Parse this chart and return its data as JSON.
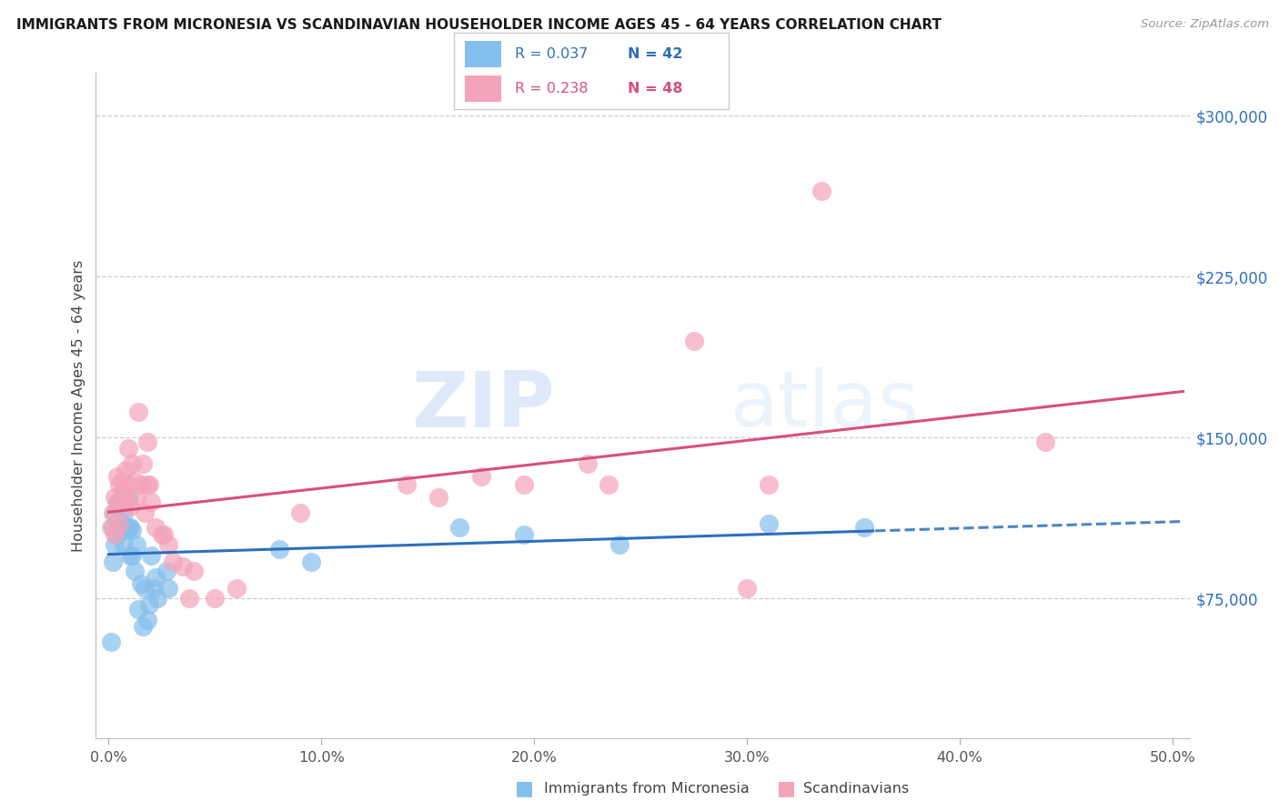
{
  "title": "IMMIGRANTS FROM MICRONESIA VS SCANDINAVIAN HOUSEHOLDER INCOME AGES 45 - 64 YEARS CORRELATION CHART",
  "source": "Source: ZipAtlas.com",
  "xlabel_ticks": [
    "0.0%",
    "10.0%",
    "20.0%",
    "30.0%",
    "40.0%",
    "50.0%"
  ],
  "xlabel_vals": [
    0.0,
    0.1,
    0.2,
    0.3,
    0.4,
    0.5
  ],
  "ylabel_ticks": [
    "$75,000",
    "$150,000",
    "$225,000",
    "$300,000"
  ],
  "ylabel_vals": [
    75000,
    150000,
    225000,
    300000
  ],
  "xlim": [
    -0.006,
    0.508
  ],
  "ylim": [
    10000,
    320000
  ],
  "blue_color": "#85bfed",
  "pink_color": "#f4a3b8",
  "blue_line_color": "#2e6fbc",
  "pink_line_color": "#d94f7a",
  "yaxis_label_color": "#2e6fbc",
  "blue_scatter_x": [
    0.001,
    0.002,
    0.002,
    0.003,
    0.003,
    0.004,
    0.004,
    0.005,
    0.005,
    0.006,
    0.006,
    0.007,
    0.007,
    0.008,
    0.008,
    0.009,
    0.009,
    0.01,
    0.01,
    0.011,
    0.011,
    0.012,
    0.013,
    0.014,
    0.015,
    0.016,
    0.017,
    0.018,
    0.019,
    0.02,
    0.021,
    0.022,
    0.023,
    0.027,
    0.028,
    0.08,
    0.095,
    0.165,
    0.195,
    0.24,
    0.31,
    0.355
  ],
  "blue_scatter_y": [
    55000,
    92000,
    108000,
    100000,
    115000,
    105000,
    118000,
    108000,
    120000,
    110000,
    122000,
    100000,
    115000,
    107000,
    120000,
    108000,
    122000,
    95000,
    108000,
    95000,
    107000,
    88000,
    100000,
    70000,
    82000,
    62000,
    80000,
    65000,
    72000,
    95000,
    80000,
    85000,
    75000,
    88000,
    80000,
    98000,
    92000,
    108000,
    105000,
    100000,
    110000,
    108000
  ],
  "pink_scatter_x": [
    0.001,
    0.002,
    0.003,
    0.003,
    0.004,
    0.004,
    0.005,
    0.005,
    0.006,
    0.007,
    0.008,
    0.008,
    0.009,
    0.009,
    0.01,
    0.011,
    0.012,
    0.013,
    0.014,
    0.015,
    0.016,
    0.017,
    0.018,
    0.018,
    0.019,
    0.02,
    0.022,
    0.025,
    0.026,
    0.028,
    0.03,
    0.035,
    0.038,
    0.04,
    0.05,
    0.06,
    0.09,
    0.14,
    0.155,
    0.175,
    0.195,
    0.225,
    0.235,
    0.275,
    0.3,
    0.31,
    0.335,
    0.44
  ],
  "pink_scatter_y": [
    108000,
    115000,
    105000,
    122000,
    120000,
    132000,
    110000,
    128000,
    130000,
    125000,
    120000,
    135000,
    128000,
    145000,
    118000,
    138000,
    130000,
    122000,
    162000,
    128000,
    138000,
    115000,
    128000,
    148000,
    128000,
    120000,
    108000,
    105000,
    105000,
    100000,
    92000,
    90000,
    75000,
    88000,
    75000,
    80000,
    115000,
    128000,
    122000,
    132000,
    128000,
    138000,
    128000,
    195000,
    80000,
    128000,
    265000,
    148000
  ],
  "watermark_zip": "ZIP",
  "watermark_atlas": "atlas",
  "background_color": "#ffffff",
  "grid_color": "#cccccc",
  "blue_trend_solid_end": 0.36,
  "blue_trend_start": 0.0,
  "blue_trend_end": 0.5,
  "pink_trend_start": 0.0,
  "pink_trend_end": 0.5
}
